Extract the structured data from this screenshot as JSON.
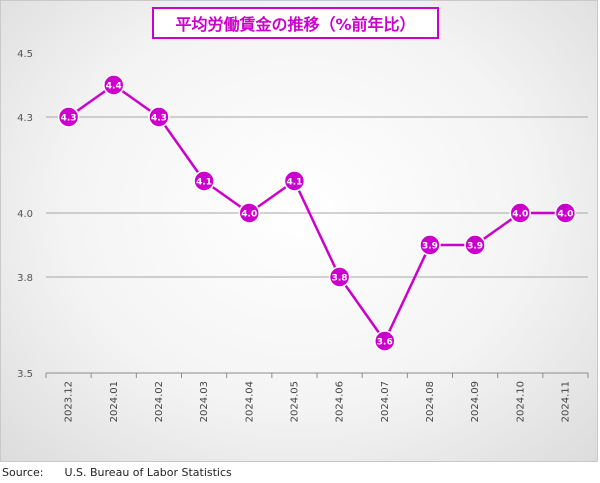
{
  "chart_data": {
    "type": "line",
    "title": "平均労働賃金の推移（%前年比）",
    "categories": [
      "2023.12",
      "2024.01",
      "2024.02",
      "2024.03",
      "2024.04",
      "2024.05",
      "2024.06",
      "2024.07",
      "2024.08",
      "2024.09",
      "2024.10",
      "2024.11"
    ],
    "values": [
      4.3,
      4.4,
      4.3,
      4.1,
      4.0,
      4.1,
      3.8,
      3.6,
      3.9,
      3.9,
      4.0,
      4.0
    ],
    "value_labels": [
      "4.3",
      "4.4",
      "4.3",
      "4.1",
      "4.0",
      "4.1",
      "3.8",
      "3.6",
      "3.9",
      "3.9",
      "4.0",
      "4.0"
    ],
    "y_ticks": [
      3.5,
      3.8,
      4.0,
      4.3,
      4.5
    ],
    "y_tick_labels": [
      "3.5",
      "3.8",
      "4.0",
      "4.3",
      "4.5"
    ],
    "ylim": [
      3.5,
      4.5
    ],
    "grid": true,
    "legend": "none",
    "line_color": "#cc00cc",
    "marker_color": "#cc00cc",
    "grid_color": "#a6a6a6"
  },
  "footer": {
    "source_label": "Source:",
    "source_text": "U.S. Bureau of Labor Statistics"
  }
}
